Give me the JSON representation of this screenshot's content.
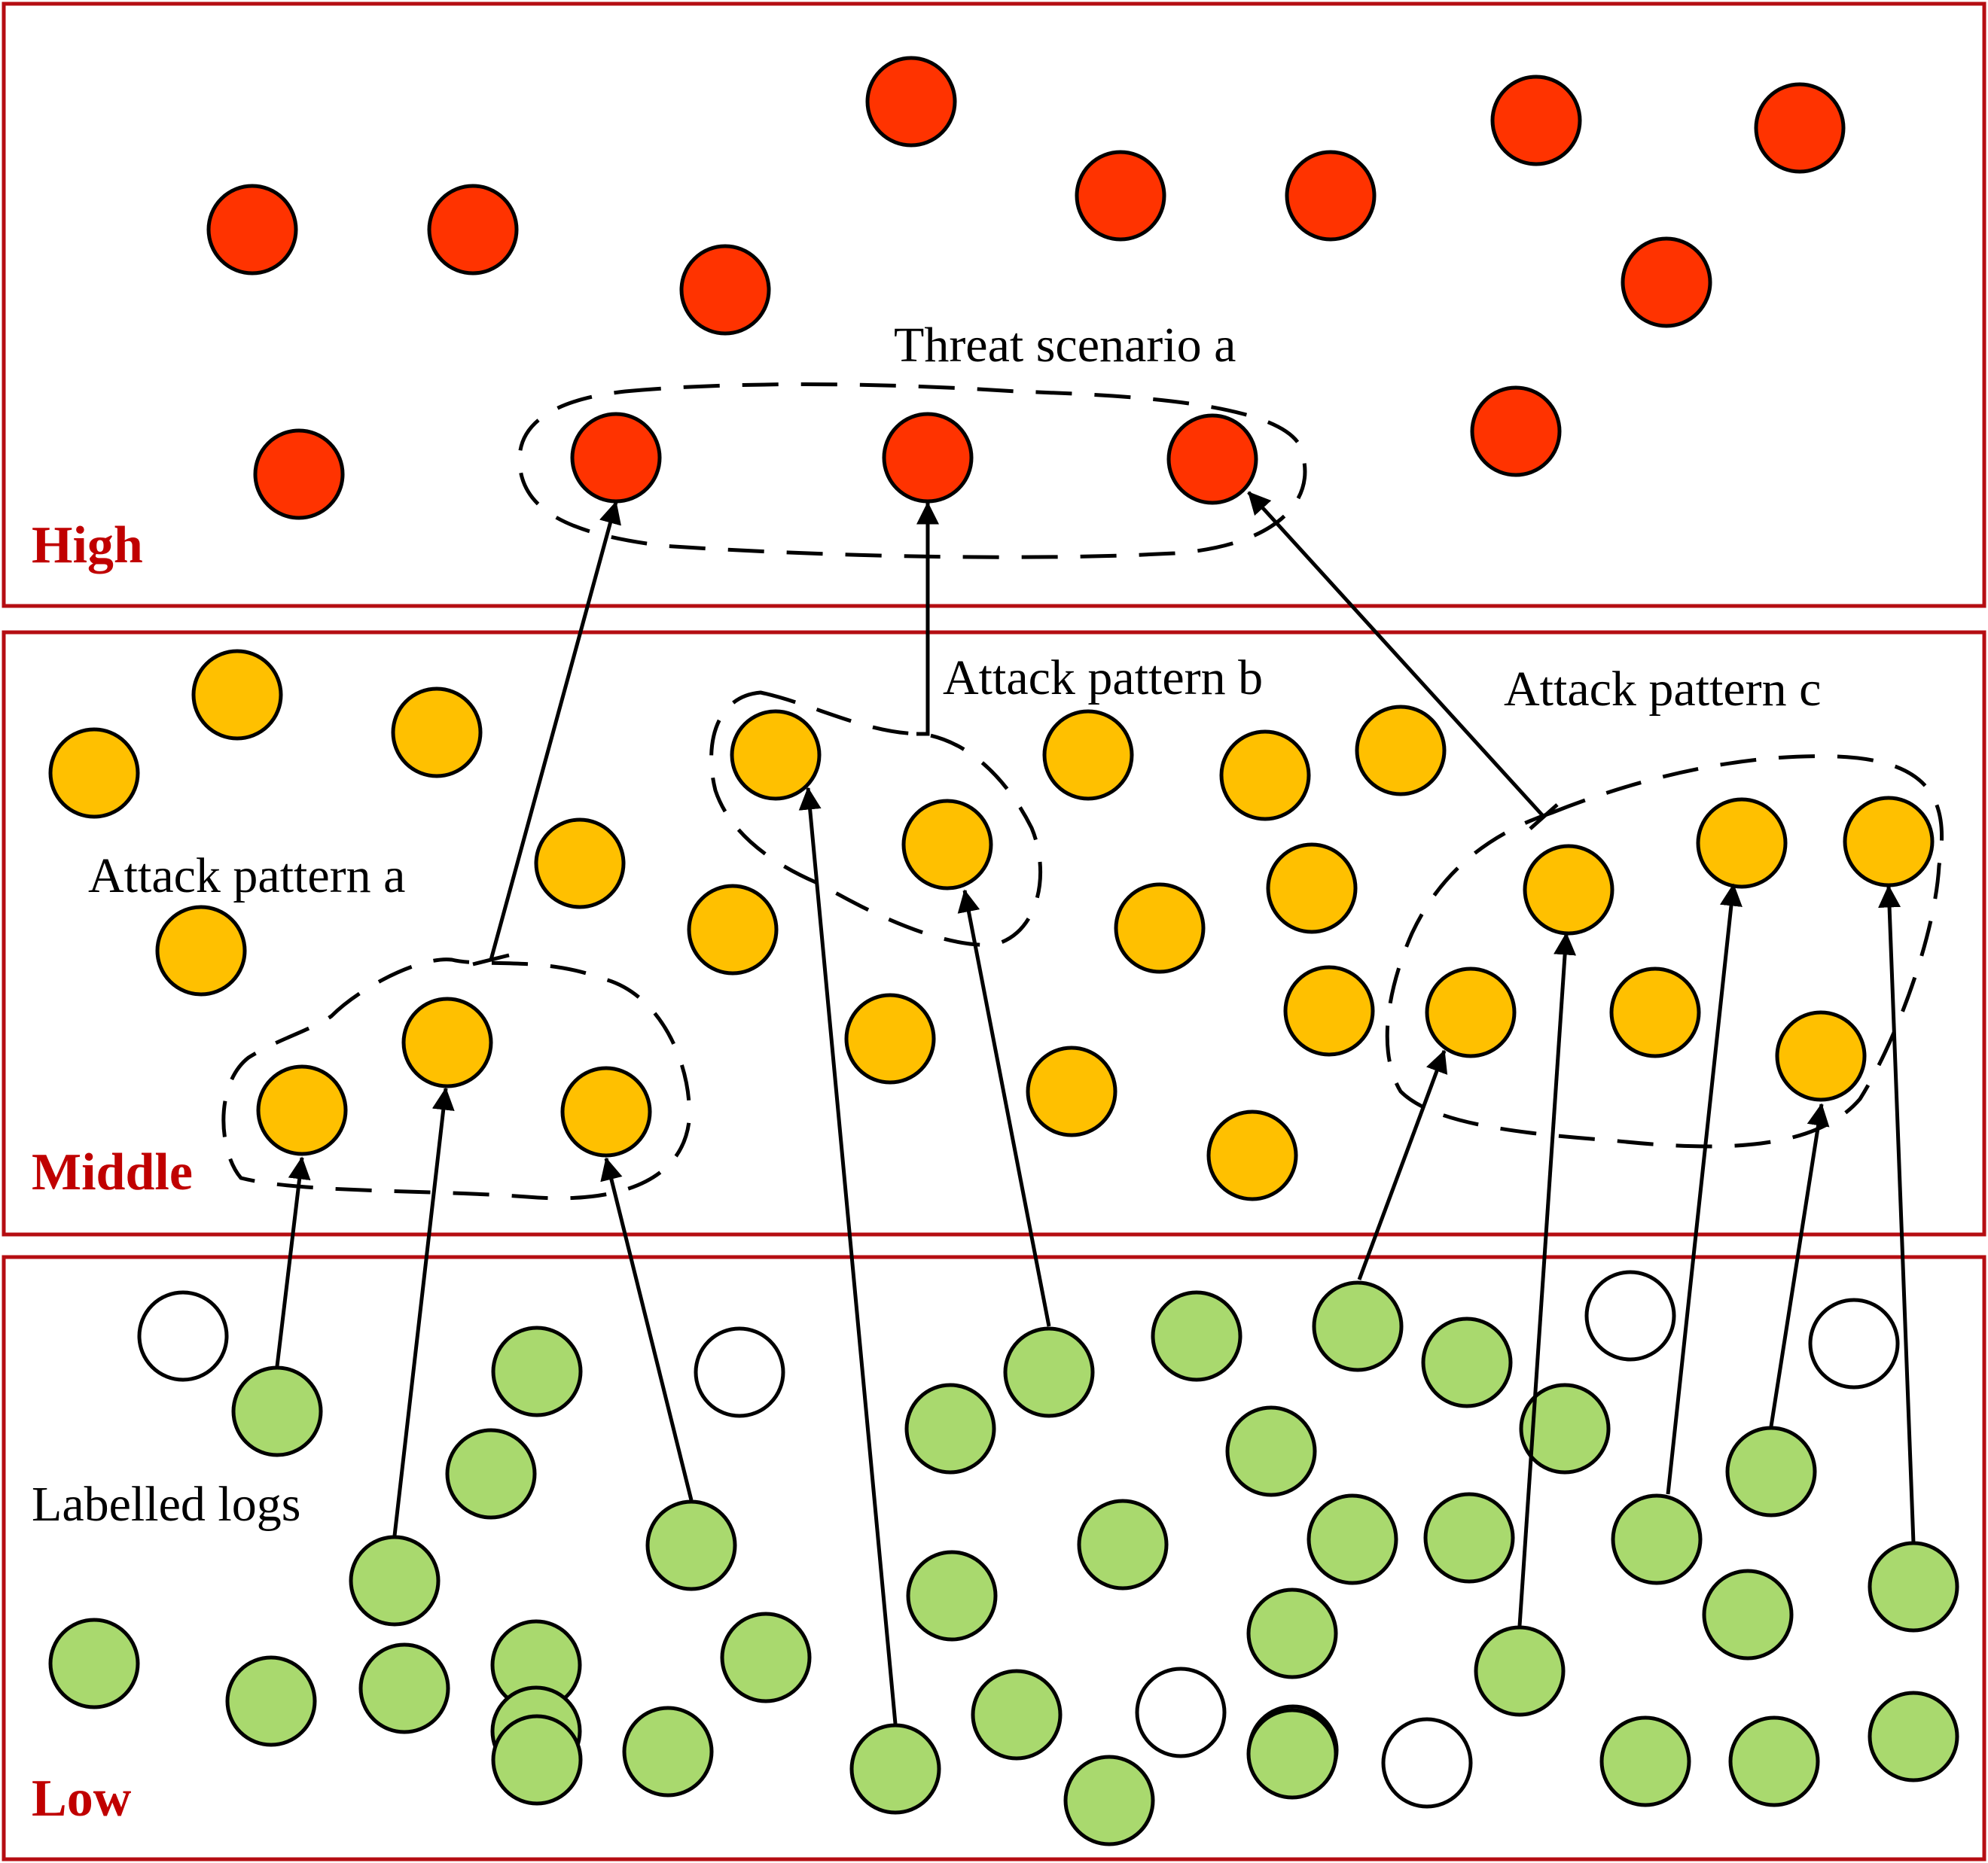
{
  "colors": {
    "high": "#ff3300",
    "middle": "#ffc000",
    "low": "#a9d96e",
    "unlabelled": "#ffffff",
    "layer_border": "#b50d12",
    "layer_label": "#c00000"
  },
  "layers": [
    {
      "id": "high",
      "label": "High"
    },
    {
      "id": "middle",
      "label": "Middle"
    },
    {
      "id": "low",
      "label": "Low"
    }
  ],
  "annotations": {
    "threat_scenario_a": "Threat scenario a",
    "attack_pattern_a": "Attack pattern a",
    "attack_pattern_b": "Attack pattern b",
    "attack_pattern_c": "Attack pattern c",
    "labelled_logs": "Labelled logs"
  }
}
